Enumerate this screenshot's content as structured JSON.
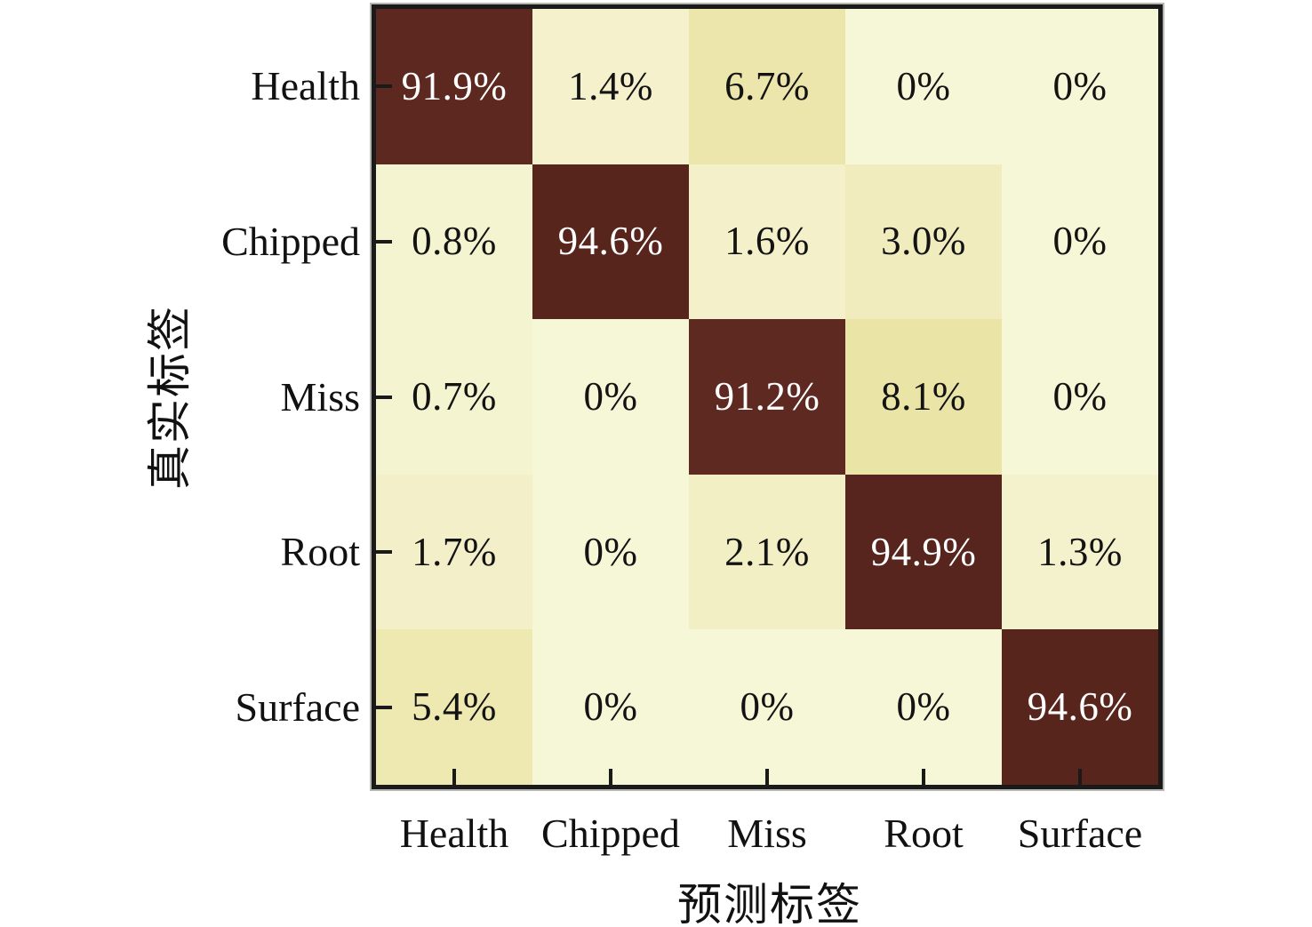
{
  "chart_data": {
    "type": "heatmap",
    "title": "",
    "xlabel": "预测标签",
    "ylabel": "真实标签",
    "categories_x": [
      "Health",
      "Chipped",
      "Miss",
      "Root",
      "Surface"
    ],
    "categories_y": [
      "Health",
      "Chipped",
      "Miss",
      "Root",
      "Surface"
    ],
    "values_percent": [
      [
        91.9,
        1.4,
        6.7,
        0,
        0
      ],
      [
        0.8,
        94.6,
        1.6,
        3.0,
        0
      ],
      [
        0.7,
        0,
        91.2,
        8.1,
        0
      ],
      [
        1.7,
        0,
        2.1,
        94.9,
        1.3
      ],
      [
        5.4,
        0,
        0,
        0,
        94.6
      ]
    ],
    "cell_labels": [
      [
        "91.9%",
        "1.4%",
        "6.7%",
        "0%",
        "0%"
      ],
      [
        "0.8%",
        "94.6%",
        "1.6%",
        "3.0%",
        "0%"
      ],
      [
        "0.7%",
        "0%",
        "91.2%",
        "8.1%",
        "0%"
      ],
      [
        "1.7%",
        "0%",
        "2.1%",
        "94.9%",
        "1.3%"
      ],
      [
        "5.4%",
        "0%",
        "0%",
        "0%",
        "94.6%"
      ]
    ],
    "value_range": [
      0,
      100
    ],
    "grid": false,
    "legend": "none",
    "colors": {
      "colormap_stops": [
        {
          "v": 0.0,
          "rgb": [
            246,
            247,
            214
          ]
        },
        {
          "v": 1.5,
          "rgb": [
            244,
            241,
            203
          ]
        },
        {
          "v": 3.0,
          "rgb": [
            240,
            236,
            189
          ]
        },
        {
          "v": 5.5,
          "rgb": [
            238,
            232,
            177
          ]
        },
        {
          "v": 8.5,
          "rgb": [
            235,
            227,
            165
          ]
        },
        {
          "v": 50.0,
          "rgb": [
            165,
            134,
            97
          ]
        },
        {
          "v": 91.0,
          "rgb": [
            94,
            41,
            33
          ]
        },
        {
          "v": 95.0,
          "rgb": [
            87,
            37,
            29
          ]
        }
      ],
      "diagonal_text": "#ffffff",
      "offdiagonal_text": "#131313",
      "frame": "#1a1a1a",
      "background": "#ffffff"
    }
  }
}
